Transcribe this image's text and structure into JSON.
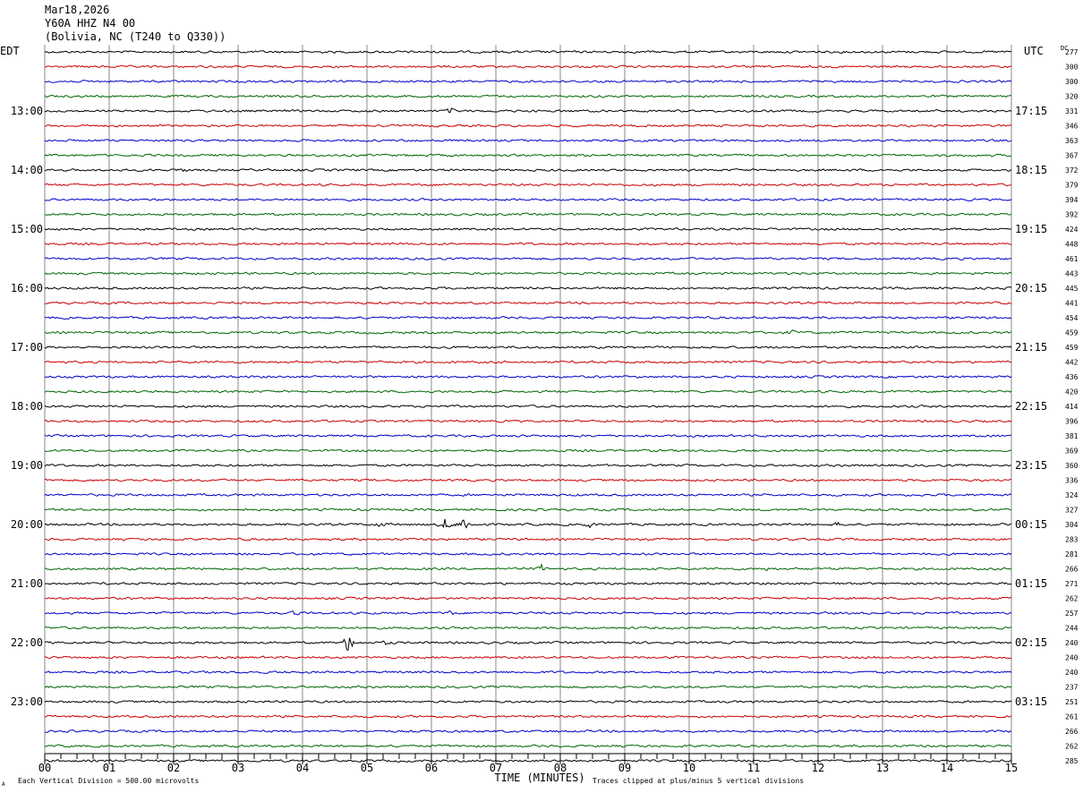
{
  "header": {
    "date": "Mar18,2026",
    "station": "Y60A HHZ N4 00",
    "location": "(Bolivia, NC (T240 to Q330))"
  },
  "left_zone": "EDT",
  "right_zone": "UTC",
  "dc_label": "DC",
  "footer": {
    "scale_note": "Each Vertical Division =  500.00 microvolts",
    "xlabel": "TIME (MINUTES)",
    "clip_note": "Traces clipped at plus/minus 5 vertical divisions",
    "corner_mark": "A"
  },
  "chart_data": {
    "type": "line",
    "title": "Y60A HHZ N4 00",
    "xlabel": "TIME (MINUTES)",
    "xlim": [
      0,
      15
    ],
    "x_ticks": [
      "00",
      "01",
      "02",
      "03",
      "04",
      "05",
      "06",
      "07",
      "08",
      "09",
      "10",
      "11",
      "12",
      "13",
      "14",
      "15"
    ],
    "rows_per_hour": 4,
    "trace_colors": [
      "#000000",
      "#cc0000",
      "#0000cc",
      "#006600"
    ],
    "left_hour_labels": [
      {
        "row": 4,
        "text": "13:00"
      },
      {
        "row": 8,
        "text": "14:00"
      },
      {
        "row": 12,
        "text": "15:00"
      },
      {
        "row": 16,
        "text": "16:00"
      },
      {
        "row": 20,
        "text": "17:00"
      },
      {
        "row": 24,
        "text": "18:00"
      },
      {
        "row": 28,
        "text": "19:00"
      },
      {
        "row": 32,
        "text": "20:00"
      },
      {
        "row": 36,
        "text": "21:00"
      },
      {
        "row": 40,
        "text": "22:00"
      },
      {
        "row": 44,
        "text": "23:00"
      }
    ],
    "right_hour_labels": [
      {
        "row": 4,
        "text": "17:15"
      },
      {
        "row": 8,
        "text": "18:15"
      },
      {
        "row": 12,
        "text": "19:15"
      },
      {
        "row": 16,
        "text": "20:15"
      },
      {
        "row": 20,
        "text": "21:15"
      },
      {
        "row": 24,
        "text": "22:15"
      },
      {
        "row": 28,
        "text": "23:15"
      },
      {
        "row": 32,
        "text": "00:15"
      },
      {
        "row": 36,
        "text": "01:15"
      },
      {
        "row": 40,
        "text": "02:15"
      },
      {
        "row": 44,
        "text": "03:15"
      }
    ],
    "dc_offsets": [
      277,
      300,
      300,
      320,
      331,
      346,
      363,
      367,
      372,
      379,
      394,
      392,
      424,
      448,
      461,
      443,
      445,
      441,
      454,
      459,
      459,
      442,
      436,
      420,
      414,
      396,
      381,
      369,
      360,
      336,
      324,
      327,
      304,
      283,
      281,
      266,
      271,
      262,
      257,
      244,
      240,
      240,
      240,
      237,
      251,
      261,
      266,
      262,
      285
    ],
    "events": [
      {
        "row": 4,
        "minute": 6.3,
        "amplitude": 0.4
      },
      {
        "row": 8,
        "minute": 2.1,
        "amplitude": 0.25
      },
      {
        "row": 19,
        "minute": 11.6,
        "amplitude": 0.3
      },
      {
        "row": 32,
        "minute": 5.2,
        "amplitude": 0.35
      },
      {
        "row": 32,
        "minute": 6.22,
        "amplitude": 1.0
      },
      {
        "row": 32,
        "minute": 6.5,
        "amplitude": 1.2
      },
      {
        "row": 32,
        "minute": 8.45,
        "amplitude": 0.3
      },
      {
        "row": 32,
        "minute": 12.3,
        "amplitude": 0.25
      },
      {
        "row": 35,
        "minute": 7.7,
        "amplitude": 0.5
      },
      {
        "row": 35,
        "minute": 11.2,
        "amplitude": 0.25
      },
      {
        "row": 38,
        "minute": 3.9,
        "amplitude": 0.35
      },
      {
        "row": 38,
        "minute": 6.3,
        "amplitude": 0.25
      },
      {
        "row": 40,
        "minute": 4.72,
        "amplitude": 1.8
      },
      {
        "row": 40,
        "minute": 5.3,
        "amplitude": 0.25
      }
    ]
  }
}
